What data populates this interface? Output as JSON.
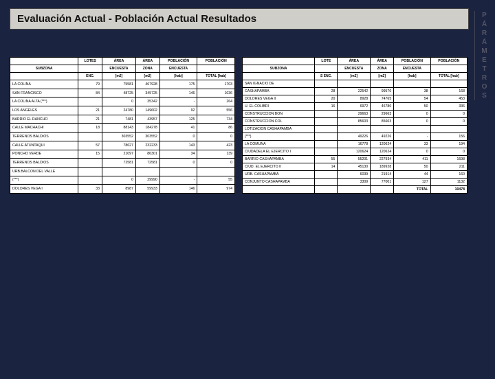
{
  "title": "Evaluación Actual - Población Actual Resultados",
  "side_label": [
    "P",
    "Á",
    "R",
    "Á",
    "M",
    "E",
    "T",
    "R",
    "O",
    "S"
  ],
  "table_left": {
    "headers_row1": [
      "",
      "LOTES",
      "ÁREA",
      "ÁREA",
      "POBLACIÓN",
      "POBLACIÓN"
    ],
    "headers_row2": [
      "SUBZONA",
      "",
      "ENCUESTA",
      "ZONA",
      "ENCUESTA",
      ""
    ],
    "headers_row3": [
      "",
      "ENC.",
      "[m2]",
      "[m2]",
      "[hab]",
      "TOTAL [hab]"
    ],
    "rows": [
      [
        "LA COLINA",
        "79",
        "75581",
        "467928",
        "175",
        "1703"
      ],
      [
        "SAN FRANCISCO",
        "84",
        "48725",
        "345725",
        "146",
        "1036"
      ],
      [
        "LA COLINA ALTA (***)",
        "",
        "0",
        "35342",
        "-",
        "264"
      ],
      [
        "LOS ANGELES",
        "21",
        "24780",
        "149602",
        "92",
        "556"
      ],
      [
        "BARRIO EL RANCHO",
        "21",
        "7481",
        "43957",
        "125",
        "734"
      ],
      [
        "CALLE MACHACHI",
        "18",
        "88143",
        "184278",
        "41",
        "86"
      ],
      [
        "TERRENOS BALDIOS",
        "",
        "303552",
        "303552",
        "0",
        "0"
      ],
      [
        "CALLE ATUNTAQUI",
        "57",
        "78627",
        "232233",
        "143",
        "423"
      ],
      [
        "PONCHO VERDE",
        "15",
        "21097",
        "86301",
        "34",
        "139"
      ],
      [
        "TERRENOS BALDIOS",
        "",
        "72581",
        "72581",
        "0",
        "0"
      ],
      [
        "URB.BALCON DEL VALLE",
        "",
        "",
        "",
        "",
        ""
      ],
      [
        "(***)",
        "",
        "0",
        "29990",
        "-",
        "55"
      ],
      [
        "DOLORES VEGA I",
        "33",
        "8987",
        "59933",
        "146",
        "974"
      ]
    ]
  },
  "table_right": {
    "headers_row1": [
      "",
      "LOTE",
      "ÁREA",
      "ÁREA",
      "POBLACIÓN",
      "POBLACIÓN"
    ],
    "headers_row2": [
      "SUBZONA",
      "",
      "ENCUESTA",
      "ZONA",
      "ENCUESTA",
      ""
    ],
    "headers_row3": [
      "",
      "S ENC.",
      "[m2]",
      "[m2]",
      "[hab]",
      "TOTAL [hab]"
    ],
    "rows": [
      [
        "SAN IGNACIO DE",
        "",
        "",
        "",
        "",
        ""
      ],
      [
        "CASHAPAMBA",
        "28",
        "22542",
        "99570",
        "38",
        "168"
      ],
      [
        "DOLORES VEGA II",
        "20",
        "8928",
        "74765",
        "54",
        "453"
      ],
      [
        "U. EL COLIBRI",
        "16",
        "6972",
        "46780",
        "50",
        "336"
      ],
      [
        "CONSTRUCCION BON",
        "",
        "29663",
        "29663",
        "0",
        "0"
      ],
      [
        "CONSTRUCCION COL",
        "",
        "85603",
        "85603",
        "0",
        "0"
      ],
      [
        "LOTIZACION CASHAPAMBA",
        "",
        "",
        "",
        "",
        ""
      ],
      [
        "(***)",
        "",
        "49226",
        "49226",
        "-",
        "156"
      ],
      [
        "LA COMUNA",
        "",
        "16778",
        "120624",
        "33",
        "194"
      ],
      [
        "CIUDADELA EL EJERCITO I",
        "",
        "120624",
        "120624",
        "0",
        "0"
      ],
      [
        "BARRIO CASHAPAMBA",
        "55",
        "55201",
        "227934",
        "411",
        "1698"
      ],
      [
        "CIUD. EL EJERCITO II",
        "14",
        "45130",
        "189928",
        "50",
        "211"
      ],
      [
        "URB. CASHAPAMBA",
        "",
        "6039",
        "21914",
        "44",
        "160"
      ],
      [
        "CONJUNTO CASHAPAMBA",
        "",
        "3309",
        "77001",
        "127",
        "1132"
      ]
    ],
    "footer": [
      "",
      "",
      "",
      "",
      "TOTAL",
      "10478"
    ]
  },
  "colors": {
    "page_bg": "#1a2440",
    "title_bg": "#d0cec8",
    "table_bg": "#ffffff",
    "border": "#000000"
  }
}
